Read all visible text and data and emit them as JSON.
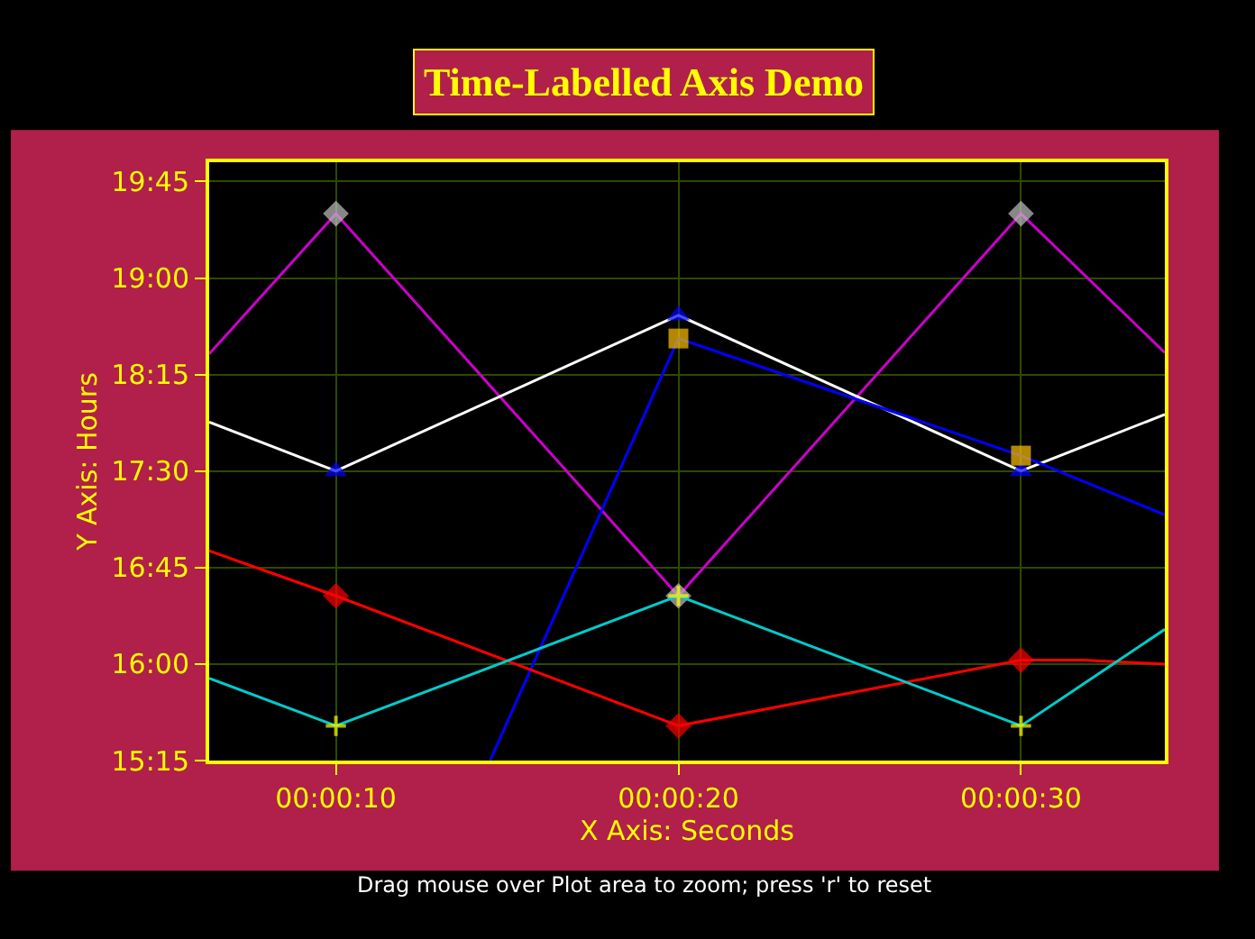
{
  "chart_data": {
    "type": "line",
    "title": "Time-Labelled Axis Demo",
    "xlabel": "X Axis: Seconds",
    "ylabel": "Y Axis: Hours",
    "annotations": [
      "Drag mouse over Plot area to zoom; press 'r' to reset"
    ],
    "xlim": [
      6.3,
      34.2
    ],
    "xticks": [
      {
        "value": 10,
        "label": "00:00:10"
      },
      {
        "value": 20,
        "label": "00:00:20"
      },
      {
        "value": 30,
        "label": "00:00:30"
      }
    ],
    "ylim": [
      15.25,
      19.9
    ],
    "yticks": [
      {
        "value": 15.25,
        "label": "15:15"
      },
      {
        "value": 16,
        "label": "16:00"
      },
      {
        "value": 16.75,
        "label": "16:45"
      },
      {
        "value": 17.5,
        "label": "17:30"
      },
      {
        "value": 18.25,
        "label": "18:15"
      },
      {
        "value": 19,
        "label": "19:00"
      },
      {
        "value": 19.75,
        "label": "19:45"
      }
    ],
    "grid": true,
    "series": [
      {
        "color": "#cc00cc",
        "marker": "diamond",
        "x": [
          6.3,
          10,
          20,
          30,
          34.2
        ],
        "values": [
          18.41,
          19.5,
          16.53,
          19.5,
          18.42
        ],
        "colors": [
          null,
          "#c0c0c0",
          "#c0c0c0",
          "#c0c0c0",
          null
        ]
      },
      {
        "color": "#ffffff",
        "marker": "triangle",
        "x": [
          6.3,
          10,
          20,
          30,
          34.2
        ],
        "values": [
          17.88,
          17.5,
          18.71,
          17.5,
          17.94
        ],
        "colors": [
          null,
          "#0000ff",
          "#0000ff",
          "#0000ff",
          null
        ]
      },
      {
        "color": "#0000ff",
        "marker": "square",
        "x": [
          14.5,
          20,
          30,
          34.2
        ],
        "values": [
          15.25,
          18.53,
          17.62,
          17.16
        ],
        "colors": [
          null,
          "#ffc000",
          "#ffc000",
          null
        ]
      },
      {
        "color": "#ff0000",
        "marker": "diamond",
        "x": [
          6.3,
          10,
          20,
          30,
          31.8,
          34.2
        ],
        "values": [
          16.88,
          16.53,
          15.52,
          16.03,
          16.03,
          16.0
        ],
        "colors": [
          null,
          "#ff0000",
          "#ff0000",
          "#ff0000",
          null,
          null
        ]
      },
      {
        "color": "#00cccc",
        "marker": "cross",
        "x": [
          6.3,
          10,
          20,
          30,
          34.2
        ],
        "values": [
          15.89,
          15.52,
          16.53,
          15.52,
          16.27
        ],
        "colors": [
          null,
          "#ffff00",
          "#ffff00",
          "#ffff00",
          null
        ]
      }
    ]
  }
}
